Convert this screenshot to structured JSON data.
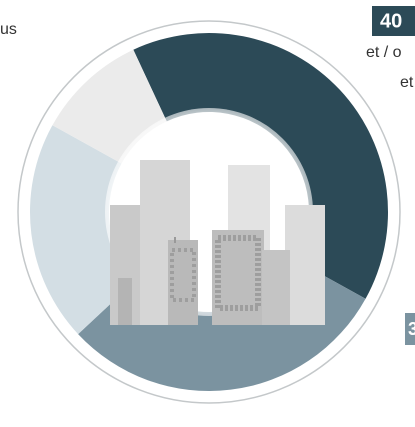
{
  "chart_data": {
    "type": "pie",
    "values": [
      40,
      30,
      20,
      10
    ],
    "colors": [
      "#2c4a57",
      "#7b93a0",
      "#d3dee4",
      "#ebebeb"
    ],
    "value_label": "40",
    "texts": [
      "us",
      "et / o",
      "et",
      "3"
    ]
  }
}
